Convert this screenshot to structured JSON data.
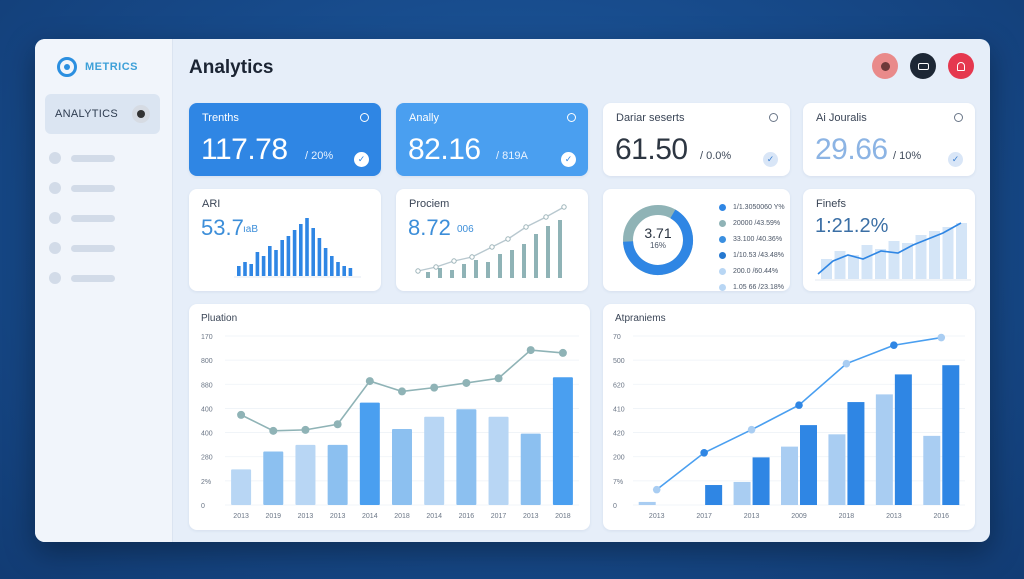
{
  "sidebar": {
    "logo_text": "METRICS",
    "active_item": "ANALYTICS"
  },
  "header": {
    "title": "Analytics"
  },
  "icons": [
    "user-avatar-icon",
    "message-icon",
    "notification-icon",
    "check-icon",
    "circle-icon"
  ],
  "colors": {
    "primary": "#2f86e4",
    "primary_light": "#4a9ff0",
    "teal": "#8fb3b6",
    "bar_light": "#b8d6f4"
  },
  "kpis": [
    {
      "title": "Trenths",
      "value": "117.78",
      "sub": "/ 20%"
    },
    {
      "title": "Anally",
      "value": "82.16",
      "sub": "/ 819A"
    },
    {
      "title": "Dariar seserts",
      "value": "61.50",
      "sub": "/ 0.0%"
    },
    {
      "title": "Ai Jouralis",
      "value": "29.66",
      "sub": "/ 10%"
    }
  ],
  "mini_cards": {
    "ari": {
      "title": "ARI",
      "value": "53.7",
      "unit": "ıaB"
    },
    "prociem": {
      "title": "Prociem",
      "value": "8.72",
      "unit": "006"
    },
    "donut": {
      "value": "3.71",
      "sub": "16%",
      "legend": [
        "1/1.3050060 Y%",
        "20000 /43.59%",
        "33.100 /40.36%",
        "1/10.53 /43.48%",
        "200.0 /60.44%",
        "1.05 66 /23.18%"
      ]
    },
    "finefs": {
      "title": "Finefs",
      "value": "1:21.2%"
    }
  },
  "chart_data": [
    {
      "type": "bar",
      "title": "Pluation",
      "yticks": [
        "170",
        "800",
        "880",
        "400",
        "400",
        "280",
        "2%",
        "0"
      ],
      "categories": [
        "2013",
        "2019",
        "2013",
        "2013",
        "2014",
        "2018",
        "2014",
        "2016",
        "2017",
        "2013",
        "2018"
      ],
      "values": [
        190,
        285,
        320,
        320,
        545,
        405,
        470,
        510,
        470,
        380,
        680
      ],
      "line": [
        480,
        395,
        400,
        430,
        660,
        605,
        625,
        650,
        675,
        825,
        810
      ],
      "ylim": [
        0,
        900
      ]
    },
    {
      "type": "bar",
      "title": "Atpraniems",
      "yticks": [
        "70",
        "500",
        "620",
        "410",
        "420",
        "200",
        "7%",
        "0"
      ],
      "categories": [
        "2013",
        "2017",
        "2013",
        "2009",
        "2018",
        "2013",
        "2016"
      ],
      "pairs": [
        [
          20,
          0
        ],
        [
          0,
          130
        ],
        [
          150,
          310
        ],
        [
          380,
          520
        ],
        [
          460,
          670
        ],
        [
          720,
          850
        ],
        [
          450,
          910
        ]
      ],
      "line": [
        100,
        340,
        490,
        650,
        920,
        1040,
        1090
      ],
      "ylim": [
        0,
        1100
      ]
    }
  ]
}
